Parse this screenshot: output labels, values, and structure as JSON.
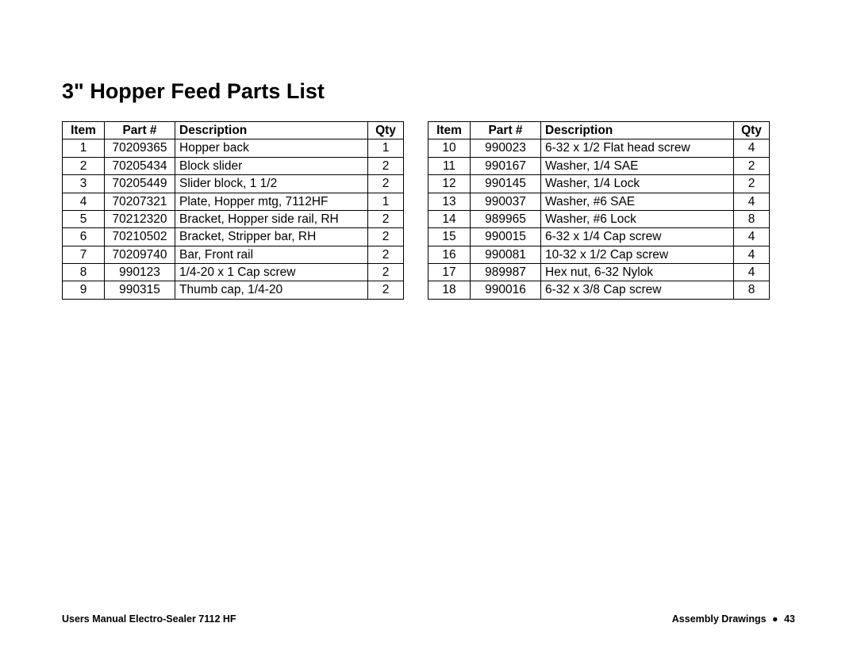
{
  "title": "3\" Hopper Feed Parts List",
  "table_headers": {
    "item": "Item",
    "part": "Part #",
    "desc": "Description",
    "qty": "Qty"
  },
  "table1": {
    "rows": [
      {
        "item": "1",
        "part": "70209365",
        "desc": "Hopper back",
        "qty": "1"
      },
      {
        "item": "2",
        "part": "70205434",
        "desc": "Block slider",
        "qty": "2"
      },
      {
        "item": "3",
        "part": "70205449",
        "desc": "Slider block, 1 1/2",
        "qty": "2"
      },
      {
        "item": "4",
        "part": "70207321",
        "desc": "Plate, Hopper mtg, 7112HF",
        "qty": "1"
      },
      {
        "item": "5",
        "part": "70212320",
        "desc": "Bracket, Hopper side rail, RH",
        "qty": "2"
      },
      {
        "item": "6",
        "part": "70210502",
        "desc": "Bracket, Stripper bar, RH",
        "qty": "2"
      },
      {
        "item": "7",
        "part": "70209740",
        "desc": "Bar, Front rail",
        "qty": "2"
      },
      {
        "item": "8",
        "part": "990123",
        "desc": "1/4-20 x 1 Cap screw",
        "qty": "2"
      },
      {
        "item": "9",
        "part": "990315",
        "desc": "Thumb cap, 1/4-20",
        "qty": "2"
      }
    ]
  },
  "table2": {
    "rows": [
      {
        "item": "10",
        "part": "990023",
        "desc": "6-32 x 1/2 Flat head screw",
        "qty": "4"
      },
      {
        "item": "11",
        "part": "990167",
        "desc": "Washer, 1/4 SAE",
        "qty": "2"
      },
      {
        "item": "12",
        "part": "990145",
        "desc": "Washer, 1/4 Lock",
        "qty": "2"
      },
      {
        "item": "13",
        "part": "990037",
        "desc": "Washer, #6 SAE",
        "qty": "4"
      },
      {
        "item": "14",
        "part": "989965",
        "desc": "Washer, #6 Lock",
        "qty": "8"
      },
      {
        "item": "15",
        "part": "990015",
        "desc": "6-32 x 1/4 Cap screw",
        "qty": "4"
      },
      {
        "item": "16",
        "part": "990081",
        "desc": "10-32 x 1/2 Cap screw",
        "qty": "4"
      },
      {
        "item": "17",
        "part": "989987",
        "desc": "Hex nut, 6-32 Nylok",
        "qty": "4"
      },
      {
        "item": "18",
        "part": "990016",
        "desc": "6-32 x 3/8 Cap screw",
        "qty": "8"
      }
    ]
  },
  "footer": {
    "left": "Users Manual Electro-Sealer 7112 HF",
    "right_section": "Assembly Drawings",
    "right_sep": "●",
    "right_page": "43"
  }
}
